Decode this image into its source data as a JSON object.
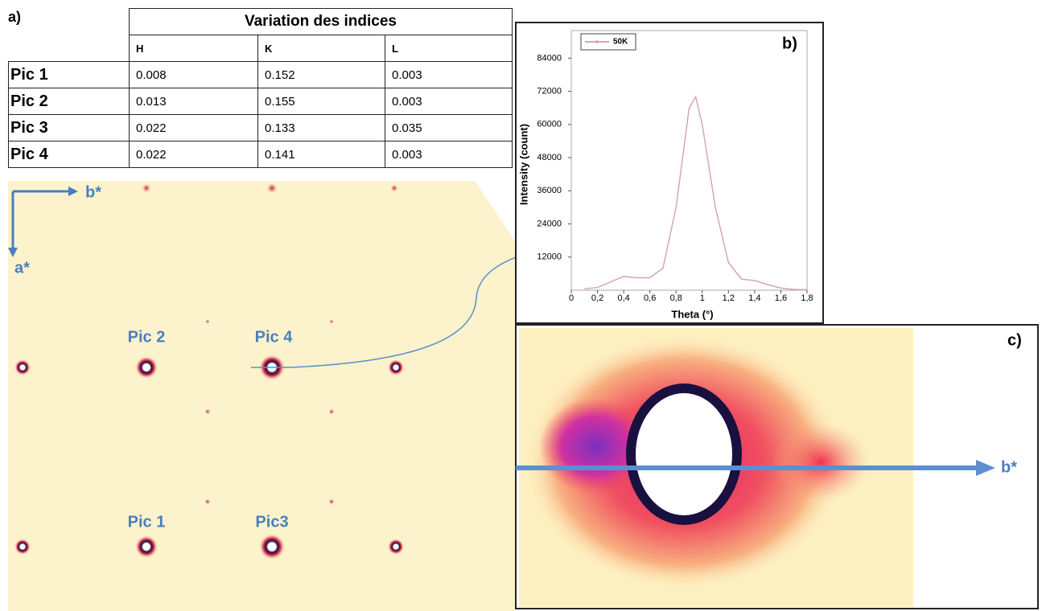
{
  "panel_labels": {
    "a": "a)",
    "b": "b)",
    "c": "c)"
  },
  "table": {
    "title": "Variation des indices",
    "columns": [
      "H",
      "K",
      "L"
    ],
    "rows": [
      [
        "Pic 1",
        "0.008",
        "0.152",
        "0.003"
      ],
      [
        "Pic 2",
        "0.013",
        "0.155",
        "0.003"
      ],
      [
        "Pic 3",
        "0.022",
        "0.133",
        "0.035"
      ],
      [
        "Pic 4",
        "0.022",
        "0.141",
        "0.003"
      ]
    ]
  },
  "diffraction": {
    "axis_b": "b*",
    "axis_a": "a*",
    "peaks": [
      "Pic 2",
      "Pic 4",
      "Pic 1",
      "Pic3"
    ]
  },
  "zoom": {
    "axis": "b*"
  },
  "chart_data": {
    "type": "line",
    "xlabel": "Theta (°)",
    "ylabel": "Intensity (count)",
    "x": [
      0.1,
      0.2,
      0.3,
      0.4,
      0.5,
      0.6,
      0.7,
      0.8,
      0.9,
      0.95,
      1.0,
      1.1,
      1.2,
      1.3,
      1.4,
      1.5,
      1.6,
      1.7,
      1.8
    ],
    "series": [
      {
        "name": "50K",
        "color": "#d3a9ae",
        "values": [
          500,
          1000,
          3000,
          5000,
          4500,
          4500,
          8000,
          30000,
          66000,
          70000,
          60000,
          30000,
          10000,
          4000,
          3500,
          2000,
          800,
          300,
          200
        ]
      }
    ],
    "xlim": [
      0,
      1.8
    ],
    "ylim": [
      0,
      94000
    ],
    "xticks": [
      0,
      {
        "value": 0.2,
        "label": "0,2"
      },
      {
        "value": 0.4,
        "label": "0,4"
      },
      {
        "value": 0.6,
        "label": "0,6"
      },
      {
        "value": 0.8,
        "label": "0,8"
      },
      1,
      {
        "value": 1.2,
        "label": "1,2"
      },
      {
        "value": 1.4,
        "label": "1,4"
      },
      {
        "value": 1.6,
        "label": "1,6"
      },
      {
        "value": 1.8,
        "label": "1,8"
      }
    ],
    "yticks": [
      12000,
      24000,
      36000,
      48000,
      60000,
      72000,
      84000
    ],
    "legend": "top-left"
  }
}
